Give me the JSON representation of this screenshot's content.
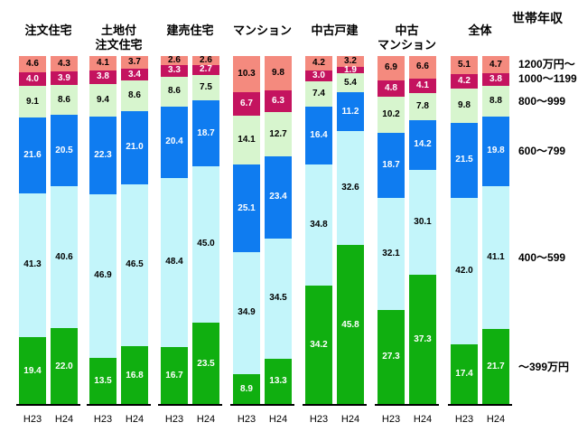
{
  "chart_data": {
    "type": "bar",
    "stacked": true,
    "unit": "%",
    "title": "世帯年収",
    "ylim": [
      0,
      100
    ],
    "grid": false,
    "legend_position": "right",
    "segment_order": "top_to_bottom",
    "x_labels": [
      "H23",
      "H24"
    ],
    "legend": [
      {
        "label": "1200万円～",
        "color": "#F48A7E",
        "text_color": "#000000"
      },
      {
        "label": "1000～1199",
        "color": "#C4135F",
        "text_color": "#FFFFFF"
      },
      {
        "label": "800～999",
        "color": "#D7F5CE",
        "text_color": "#000000"
      },
      {
        "label": "600～799",
        "color": "#0F7CF0",
        "text_color": "#FFFFFF"
      },
      {
        "label": "400～599",
        "color": "#C3F5FA",
        "text_color": "#000000"
      },
      {
        "label": "～399万円",
        "color": "#10AF10",
        "text_color": "#FFFFFF"
      }
    ],
    "groups": [
      {
        "label": "注文住宅",
        "bars": [
          {
            "x": "H23",
            "values": [
              4.6,
              4.0,
              9.1,
              21.6,
              41.3,
              19.4
            ]
          },
          {
            "x": "H24",
            "values": [
              4.3,
              3.9,
              8.6,
              20.5,
              40.6,
              22.0
            ]
          }
        ]
      },
      {
        "label": "土地付\n注文住宅",
        "bars": [
          {
            "x": "H23",
            "values": [
              4.1,
              3.8,
              9.4,
              22.3,
              46.9,
              13.5
            ]
          },
          {
            "x": "H24",
            "values": [
              3.7,
              3.4,
              8.6,
              21.0,
              46.5,
              16.8
            ]
          }
        ]
      },
      {
        "label": "建売住宅",
        "bars": [
          {
            "x": "H23",
            "values": [
              2.6,
              3.3,
              8.6,
              20.4,
              48.4,
              16.7
            ]
          },
          {
            "x": "H24",
            "values": [
              2.6,
              2.7,
              7.5,
              18.7,
              45.0,
              23.5
            ]
          }
        ]
      },
      {
        "label": "マンション",
        "bars": [
          {
            "x": "H23",
            "values": [
              10.3,
              6.7,
              14.1,
              25.1,
              34.9,
              8.9
            ]
          },
          {
            "x": "H24",
            "values": [
              9.8,
              6.3,
              12.7,
              23.4,
              34.5,
              13.3
            ]
          }
        ]
      },
      {
        "label": "中古戸建",
        "bars": [
          {
            "x": "H23",
            "values": [
              4.2,
              3.0,
              7.4,
              16.4,
              34.8,
              34.2
            ]
          },
          {
            "x": "H24",
            "values": [
              3.2,
              1.9,
              5.4,
              11.2,
              32.6,
              45.8
            ]
          }
        ]
      },
      {
        "label": "中古\nマンション",
        "bars": [
          {
            "x": "H23",
            "values": [
              6.9,
              4.8,
              10.2,
              18.7,
              32.1,
              27.3
            ]
          },
          {
            "x": "H24",
            "values": [
              6.6,
              4.1,
              7.8,
              14.2,
              30.1,
              37.3
            ]
          }
        ]
      },
      {
        "label": "全体",
        "bars": [
          {
            "x": "H23",
            "values": [
              5.1,
              4.2,
              9.8,
              21.5,
              42.0,
              17.4
            ]
          },
          {
            "x": "H24",
            "values": [
              4.7,
              3.8,
              8.8,
              19.8,
              41.1,
              21.7
            ]
          }
        ]
      }
    ]
  }
}
